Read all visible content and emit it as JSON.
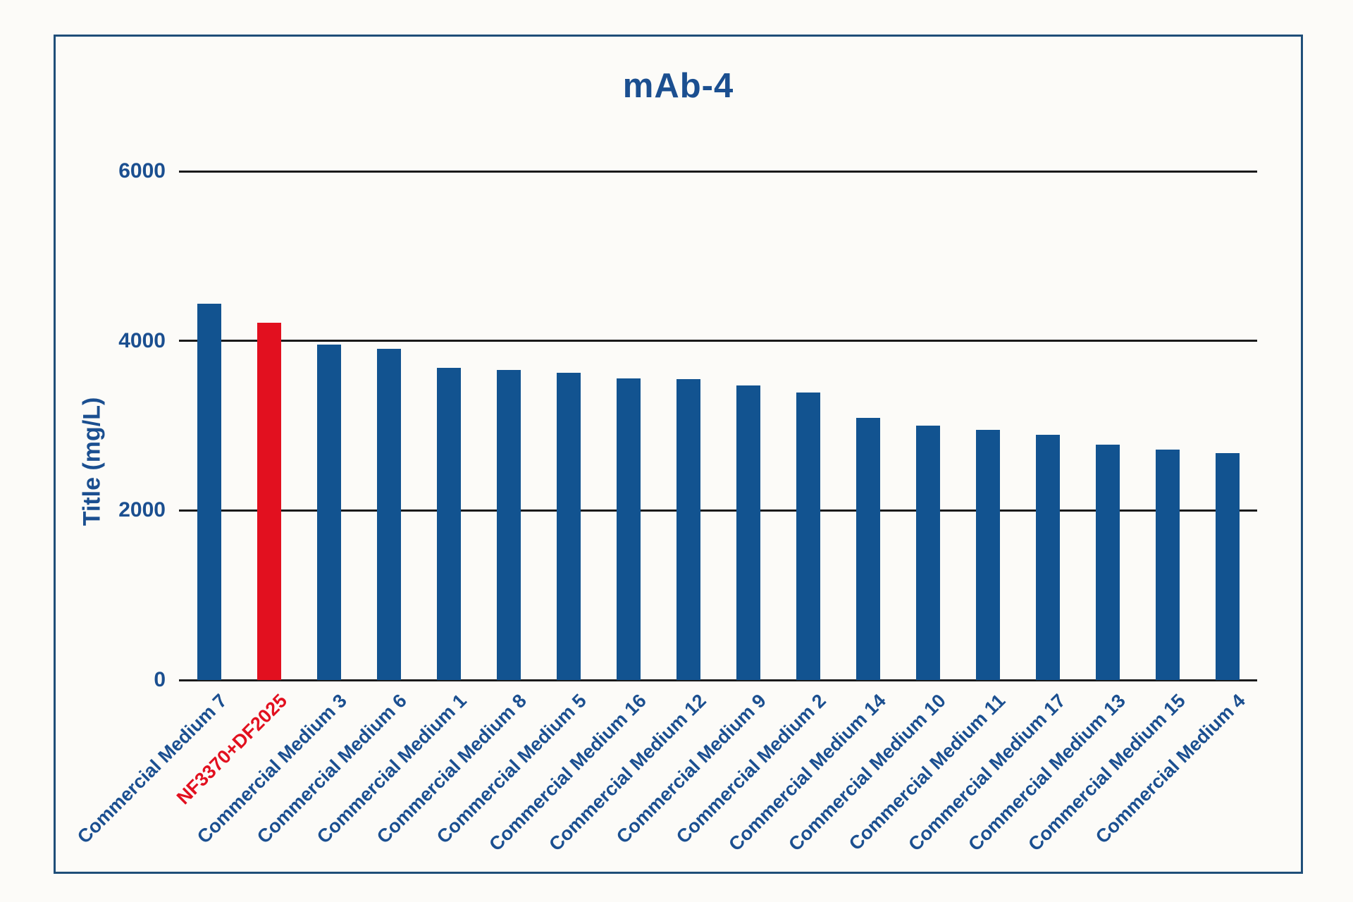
{
  "title": "mAb-4",
  "y_axis": {
    "label": "Title (mg/L)",
    "ticks": [
      {
        "value": 0,
        "label": "0"
      },
      {
        "value": 2000,
        "label": "2000"
      },
      {
        "value": 4000,
        "label": "4000"
      },
      {
        "value": 6000,
        "label": "6000"
      }
    ],
    "max": 6000
  },
  "chart_data": {
    "type": "bar",
    "title": "mAb-4",
    "xlabel": "",
    "ylabel": "Title (mg/L)",
    "ylim": [
      0,
      6000
    ],
    "grid": "horizontal",
    "legend": "none",
    "categories": [
      "Commercial Medium 7",
      "NF3370+DF2025",
      "Commercial Medium 3",
      "Commercial Medium 6",
      "Commercial Medium 1",
      "Commercial Medium 8",
      "Commercial Medium 5",
      "Commercial Medium 16",
      "Commercial Medium 12",
      "Commercial Medium 9",
      "Commercial Medium 2",
      "Commercial Medium 14",
      "Commercial Medium 10",
      "Commercial Medium 11",
      "Commercial Medium 17",
      "Commercial Medium 13",
      "Commercial Medium 15",
      "Commercial Medium 4"
    ],
    "values": [
      4440,
      4210,
      3960,
      3910,
      3680,
      3660,
      3620,
      3560,
      3550,
      3470,
      3390,
      3090,
      3000,
      2950,
      2890,
      2780,
      2720,
      2680
    ],
    "highlight_index": 1,
    "colors": {
      "bar": "#125390",
      "highlight_bar": "#E2101F",
      "text": "#1B4F90",
      "highlight_text": "#E2101F",
      "gridline": "#1A1A1A",
      "figure_border": "#1F4E79",
      "background": "#FCFBF8"
    }
  }
}
